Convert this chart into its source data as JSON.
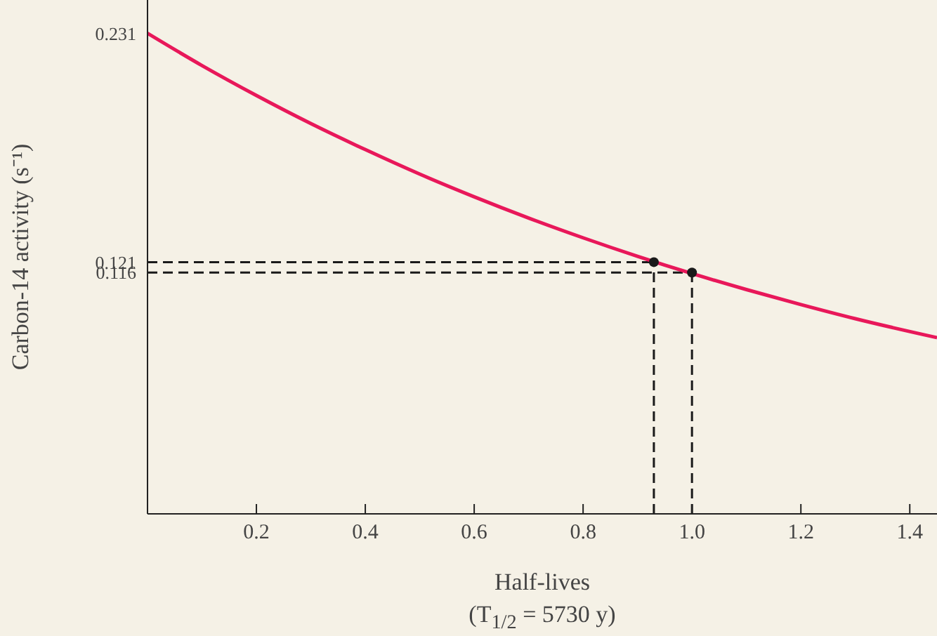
{
  "chart_data": {
    "type": "line",
    "xlabel": "Half-lives\n(T$_{1/2}$ = 5730 y)",
    "ylabel": "Carbon-14 activity (s⁻¹)",
    "xlim": [
      0,
      1.45
    ],
    "xticks": [
      0.2,
      0.4,
      0.6,
      0.8,
      {
        "value": 1,
        "label": "1.0"
      },
      1.2,
      1.4
    ],
    "ylim": [
      0,
      0.247
    ],
    "yticks": [
      0.231,
      0.121,
      0.116
    ],
    "series": [
      {
        "color": "#e8185a",
        "marker": "none",
        "line_style": "solid",
        "x": [
          0,
          0.1,
          0.2,
          0.3,
          0.4,
          0.5,
          0.6,
          0.7,
          0.8,
          0.9,
          1.0,
          1.1,
          1.2,
          1.3,
          1.45
        ],
        "values": [
          0.231,
          0.2155,
          0.2011,
          0.1876,
          0.1751,
          0.1633,
          0.1524,
          0.1422,
          0.1327,
          0.1238,
          0.1155,
          0.1078,
          0.1006,
          0.0938,
          0.0847
        ]
      },
      {
        "type": "scatter",
        "color": "#1a1a1a",
        "marker": "circle",
        "x": [
          0.93,
          1.0
        ],
        "values": [
          0.121,
          0.116
        ]
      }
    ],
    "ref_lines": [
      {
        "axis": "y",
        "value": 0.121,
        "color": "#1a1a1a",
        "line_style": "dashed"
      },
      {
        "axis": "y",
        "value": 0.116,
        "color": "#1a1a1a",
        "line_style": "dashed"
      },
      {
        "axis": "x",
        "value": 0.93,
        "color": "#1a1a1a",
        "line_style": "dashed"
      },
      {
        "axis": "x",
        "value": 1.0,
        "color": "#1a1a1a",
        "line_style": "dashed"
      }
    ]
  }
}
